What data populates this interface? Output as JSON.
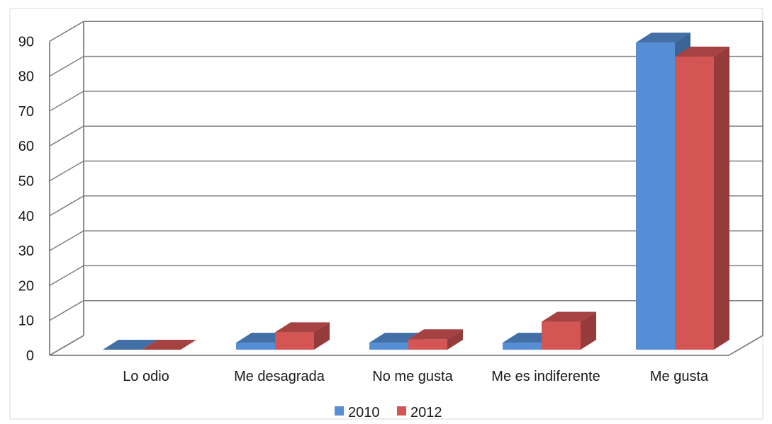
{
  "chart_data": {
    "type": "bar",
    "style": "3d-clustered-column",
    "categories": [
      "Lo odio",
      "Me desagrada",
      "No me gusta",
      "Me es indiferente",
      "Me gusta"
    ],
    "series": [
      {
        "name": "2010",
        "color": "#558ed5",
        "values": [
          0,
          2,
          2,
          2,
          88
        ]
      },
      {
        "name": "2012",
        "color": "#d55555",
        "values": [
          0,
          5,
          3,
          8,
          84
        ]
      }
    ],
    "ylim": [
      0,
      90
    ],
    "yticks": [
      "0",
      "10",
      "20",
      "30",
      "40",
      "50",
      "60",
      "70",
      "80",
      "90"
    ],
    "grid": true,
    "legend_position": "bottom",
    "title": "",
    "xlabel": "",
    "ylabel": ""
  }
}
